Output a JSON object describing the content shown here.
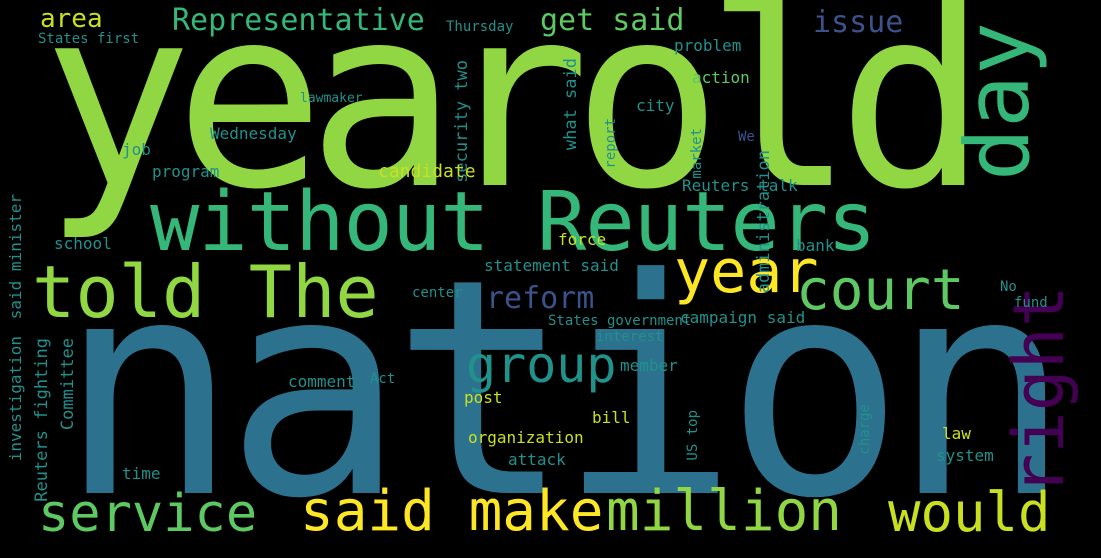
{
  "palette": [
    "#440154",
    "#3b528b",
    "#2c728e",
    "#21918c",
    "#35b779",
    "#5ec962",
    "#90d743",
    "#c8e020",
    "#fde725"
  ],
  "words": {
    "nation": "nation",
    "yearold": "yearold",
    "without_reuters": "without Reuters",
    "told_the": "told The",
    "said_make": "said make",
    "million": "million",
    "would": "would",
    "service": "service",
    "day": "day",
    "right": "right",
    "year": "year",
    "court": "court",
    "group": "group",
    "reform": "reform",
    "representative": "Representative",
    "get_said": "get said",
    "issue": "issue",
    "area": "area",
    "thursday": "Thursday",
    "states_first": "States first",
    "security_two": "security two",
    "what_said": "what said",
    "report": "report",
    "action": "action",
    "problem": "problem",
    "city": "city",
    "lawmaker": "lawmaker",
    "wednesday": "Wednesday",
    "job": "job",
    "program": "program",
    "candidate": "candidate",
    "market": "market",
    "reuters_talk": "Reuters talk",
    "administration": "administration",
    "school": "school",
    "force": "force",
    "bank": "bank",
    "fund": "fund",
    "statement_said": "statement said",
    "center": "center",
    "campaign_said": "campaign said",
    "states_government": "States government",
    "interest": "interest",
    "investigation": "investigation",
    "reuters_fighting": "Reuters fighting",
    "committee": "Committee",
    "said_minister": "said minister",
    "comment": "comment",
    "act": "Act",
    "member": "member",
    "post": "post",
    "bill": "bill",
    "us_top": "US top",
    "organization": "organization",
    "charge": "charge",
    "law": "law",
    "system": "system",
    "attack": "attack",
    "time": "time",
    "no": "No",
    "we": "We"
  }
}
